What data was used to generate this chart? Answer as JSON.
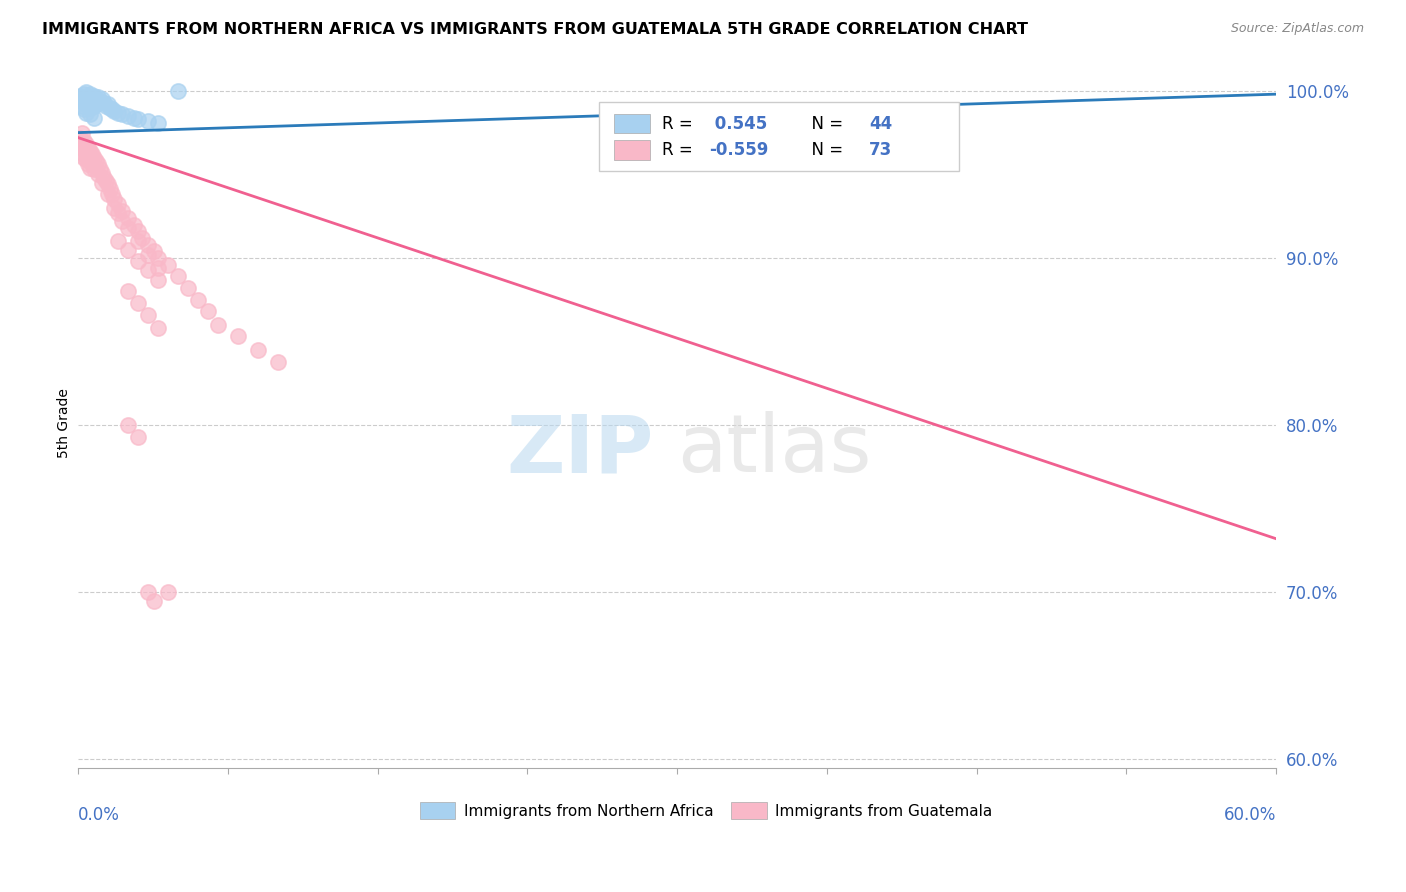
{
  "title": "IMMIGRANTS FROM NORTHERN AFRICA VS IMMIGRANTS FROM GUATEMALA 5TH GRADE CORRELATION CHART",
  "source": "Source: ZipAtlas.com",
  "ylabel": "5th Grade",
  "r_blue": 0.545,
  "n_blue": 44,
  "r_pink": -0.559,
  "n_pink": 73,
  "xlim": [
    0.0,
    0.6
  ],
  "ylim": [
    0.595,
    1.008
  ],
  "blue_color": "#a8d1f0",
  "pink_color": "#f9b8c8",
  "blue_line_color": "#2b7bba",
  "pink_line_color": "#f06090",
  "blue_line": [
    [
      0.0,
      0.975
    ],
    [
      0.6,
      0.998
    ]
  ],
  "pink_line": [
    [
      0.0,
      0.972
    ],
    [
      0.6,
      0.732
    ]
  ],
  "blue_scatter": [
    [
      0.001,
      0.997
    ],
    [
      0.002,
      0.996
    ],
    [
      0.002,
      0.994
    ],
    [
      0.003,
      0.998
    ],
    [
      0.003,
      0.993
    ],
    [
      0.004,
      0.999
    ],
    [
      0.004,
      0.996
    ],
    [
      0.004,
      0.993
    ],
    [
      0.005,
      0.997
    ],
    [
      0.005,
      0.994
    ],
    [
      0.005,
      0.992
    ],
    [
      0.006,
      0.998
    ],
    [
      0.006,
      0.995
    ],
    [
      0.006,
      0.99
    ],
    [
      0.007,
      0.996
    ],
    [
      0.007,
      0.993
    ],
    [
      0.008,
      0.997
    ],
    [
      0.008,
      0.994
    ],
    [
      0.008,
      0.991
    ],
    [
      0.009,
      0.995
    ],
    [
      0.009,
      0.992
    ],
    [
      0.01,
      0.996
    ],
    [
      0.01,
      0.993
    ],
    [
      0.011,
      0.994
    ],
    [
      0.012,
      0.995
    ],
    [
      0.013,
      0.993
    ],
    [
      0.014,
      0.991
    ],
    [
      0.015,
      0.992
    ],
    [
      0.016,
      0.99
    ],
    [
      0.017,
      0.989
    ],
    [
      0.018,
      0.988
    ],
    [
      0.02,
      0.987
    ],
    [
      0.022,
      0.986
    ],
    [
      0.025,
      0.985
    ],
    [
      0.028,
      0.984
    ],
    [
      0.03,
      0.983
    ],
    [
      0.035,
      0.982
    ],
    [
      0.04,
      0.981
    ],
    [
      0.002,
      0.991
    ],
    [
      0.003,
      0.989
    ],
    [
      0.004,
      0.987
    ],
    [
      0.006,
      0.986
    ],
    [
      0.05,
      1.0
    ],
    [
      0.008,
      0.984
    ]
  ],
  "pink_scatter": [
    [
      0.001,
      0.972
    ],
    [
      0.001,
      0.969
    ],
    [
      0.002,
      0.975
    ],
    [
      0.002,
      0.968
    ],
    [
      0.002,
      0.963
    ],
    [
      0.003,
      0.97
    ],
    [
      0.003,
      0.966
    ],
    [
      0.003,
      0.96
    ],
    [
      0.004,
      0.968
    ],
    [
      0.004,
      0.964
    ],
    [
      0.004,
      0.959
    ],
    [
      0.005,
      0.966
    ],
    [
      0.005,
      0.961
    ],
    [
      0.005,
      0.956
    ],
    [
      0.006,
      0.964
    ],
    [
      0.006,
      0.958
    ],
    [
      0.006,
      0.954
    ],
    [
      0.007,
      0.962
    ],
    [
      0.007,
      0.956
    ],
    [
      0.008,
      0.96
    ],
    [
      0.008,
      0.953
    ],
    [
      0.009,
      0.958
    ],
    [
      0.01,
      0.956
    ],
    [
      0.01,
      0.95
    ],
    [
      0.011,
      0.953
    ],
    [
      0.012,
      0.951
    ],
    [
      0.012,
      0.945
    ],
    [
      0.013,
      0.948
    ],
    [
      0.014,
      0.946
    ],
    [
      0.015,
      0.944
    ],
    [
      0.015,
      0.938
    ],
    [
      0.016,
      0.941
    ],
    [
      0.017,
      0.938
    ],
    [
      0.018,
      0.935
    ],
    [
      0.018,
      0.93
    ],
    [
      0.02,
      0.932
    ],
    [
      0.02,
      0.927
    ],
    [
      0.022,
      0.928
    ],
    [
      0.022,
      0.922
    ],
    [
      0.025,
      0.924
    ],
    [
      0.025,
      0.918
    ],
    [
      0.028,
      0.92
    ],
    [
      0.03,
      0.916
    ],
    [
      0.03,
      0.91
    ],
    [
      0.032,
      0.912
    ],
    [
      0.035,
      0.908
    ],
    [
      0.035,
      0.902
    ],
    [
      0.038,
      0.904
    ],
    [
      0.04,
      0.9
    ],
    [
      0.04,
      0.894
    ],
    [
      0.045,
      0.896
    ],
    [
      0.05,
      0.889
    ],
    [
      0.055,
      0.882
    ],
    [
      0.06,
      0.875
    ],
    [
      0.065,
      0.868
    ],
    [
      0.07,
      0.86
    ],
    [
      0.08,
      0.853
    ],
    [
      0.09,
      0.845
    ],
    [
      0.1,
      0.838
    ],
    [
      0.02,
      0.91
    ],
    [
      0.025,
      0.905
    ],
    [
      0.03,
      0.898
    ],
    [
      0.035,
      0.893
    ],
    [
      0.04,
      0.887
    ],
    [
      0.025,
      0.88
    ],
    [
      0.03,
      0.873
    ],
    [
      0.035,
      0.866
    ],
    [
      0.04,
      0.858
    ],
    [
      0.025,
      0.8
    ],
    [
      0.03,
      0.793
    ],
    [
      0.035,
      0.7
    ],
    [
      0.038,
      0.695
    ],
    [
      0.045,
      0.7
    ]
  ]
}
